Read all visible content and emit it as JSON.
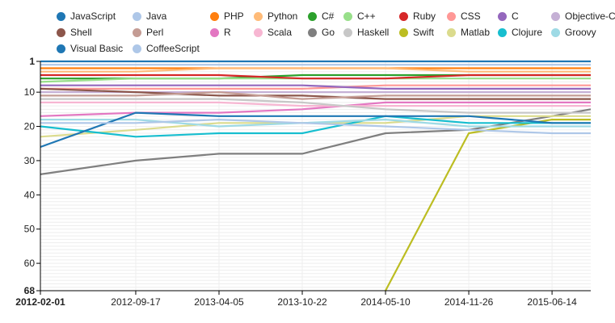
{
  "chart_data": {
    "type": "line",
    "title": "",
    "xlabel": "",
    "ylabel": "",
    "ylim": [
      1,
      68
    ],
    "y_reversed": true,
    "y_ticks": [
      "1",
      "10",
      "20",
      "30",
      "40",
      "50",
      "60",
      "68"
    ],
    "x": [
      "2012-02-01",
      "2012-09-17",
      "2013-04-05",
      "2013-10-22",
      "2014-05-10",
      "2014-11-26",
      "2015-06-14"
    ],
    "x_ticks": [
      "2012-02-01",
      "2012-09-17",
      "2013-04-05",
      "2013-10-22",
      "2014-05-10",
      "2014-11-26",
      "2015-06-14"
    ],
    "x_end": "2015-09-15",
    "grid": true,
    "legend_position": "top",
    "series": [
      {
        "name": "JavaScript",
        "color": "#1f77b4",
        "points": [
          [
            "2012-02-01",
            1
          ],
          [
            "2012-09-17",
            1
          ],
          [
            "2013-04-05",
            1
          ],
          [
            "2013-10-22",
            1
          ],
          [
            "2014-05-10",
            1
          ],
          [
            "2014-11-26",
            1
          ],
          [
            "2015-06-14",
            1
          ],
          [
            "2015-09-15",
            1
          ]
        ]
      },
      {
        "name": "Java",
        "color": "#aec7e8",
        "points": [
          [
            "2012-02-01",
            2
          ],
          [
            "2012-09-17",
            2
          ],
          [
            "2013-04-05",
            2
          ],
          [
            "2013-10-22",
            2
          ],
          [
            "2014-05-10",
            2
          ],
          [
            "2014-11-26",
            2
          ],
          [
            "2015-06-14",
            2
          ],
          [
            "2015-09-15",
            2
          ]
        ]
      },
      {
        "name": "PHP",
        "color": "#ff7f0e",
        "points": [
          [
            "2012-02-01",
            3
          ],
          [
            "2012-09-17",
            3
          ],
          [
            "2013-04-05",
            3
          ],
          [
            "2013-10-22",
            3
          ],
          [
            "2014-05-10",
            3
          ],
          [
            "2014-11-26",
            3
          ],
          [
            "2015-06-14",
            3
          ],
          [
            "2015-09-15",
            3
          ]
        ]
      },
      {
        "name": "Python",
        "color": "#ffbb78",
        "points": [
          [
            "2012-02-01",
            4
          ],
          [
            "2012-09-17",
            4
          ],
          [
            "2013-04-05",
            3
          ],
          [
            "2013-10-22",
            3
          ],
          [
            "2014-05-10",
            3
          ],
          [
            "2014-11-26",
            4
          ],
          [
            "2015-06-14",
            4
          ],
          [
            "2015-09-15",
            4
          ]
        ]
      },
      {
        "name": "C#",
        "color": "#2ca02c",
        "points": [
          [
            "2012-02-01",
            6
          ],
          [
            "2012-09-17",
            6
          ],
          [
            "2013-04-05",
            6
          ],
          [
            "2013-10-22",
            5
          ],
          [
            "2014-05-10",
            5
          ],
          [
            "2014-11-26",
            5
          ],
          [
            "2015-06-14",
            5
          ],
          [
            "2015-09-15",
            5
          ]
        ]
      },
      {
        "name": "C++",
        "color": "#98df8a",
        "points": [
          [
            "2012-02-01",
            7
          ],
          [
            "2012-09-17",
            6
          ],
          [
            "2013-04-05",
            6
          ],
          [
            "2013-10-22",
            6
          ],
          [
            "2014-05-10",
            6
          ],
          [
            "2014-11-26",
            6
          ],
          [
            "2015-06-14",
            6
          ],
          [
            "2015-09-15",
            6
          ]
        ]
      },
      {
        "name": "Ruby",
        "color": "#d62728",
        "points": [
          [
            "2012-02-01",
            5
          ],
          [
            "2012-09-17",
            5
          ],
          [
            "2013-04-05",
            5
          ],
          [
            "2013-10-22",
            6
          ],
          [
            "2014-05-10",
            6
          ],
          [
            "2014-11-26",
            5
          ],
          [
            "2015-06-14",
            5
          ],
          [
            "2015-09-15",
            5
          ]
        ]
      },
      {
        "name": "CSS",
        "color": "#ff9896",
        "points": [
          [
            "2012-02-01",
            9
          ],
          [
            "2012-09-17",
            9
          ],
          [
            "2013-04-05",
            9
          ],
          [
            "2013-10-22",
            9
          ],
          [
            "2014-05-10",
            8
          ],
          [
            "2014-11-26",
            8
          ],
          [
            "2015-06-14",
            8
          ],
          [
            "2015-09-15",
            8
          ]
        ]
      },
      {
        "name": "C",
        "color": "#9467bd",
        "points": [
          [
            "2012-02-01",
            8
          ],
          [
            "2012-09-17",
            8
          ],
          [
            "2013-04-05",
            8
          ],
          [
            "2013-10-22",
            8
          ],
          [
            "2014-05-10",
            9
          ],
          [
            "2014-11-26",
            9
          ],
          [
            "2015-06-14",
            9
          ],
          [
            "2015-09-15",
            9
          ]
        ]
      },
      {
        "name": "Objective-C",
        "color": "#c5b0d5",
        "points": [
          [
            "2012-02-01",
            10
          ],
          [
            "2012-09-17",
            10
          ],
          [
            "2013-04-05",
            10
          ],
          [
            "2013-10-22",
            10
          ],
          [
            "2014-05-10",
            10
          ],
          [
            "2014-11-26",
            10
          ],
          [
            "2015-06-14",
            10
          ],
          [
            "2015-09-15",
            10
          ]
        ]
      },
      {
        "name": "Shell",
        "color": "#8c564b",
        "points": [
          [
            "2012-02-01",
            9
          ],
          [
            "2012-09-17",
            10
          ],
          [
            "2013-04-05",
            11
          ],
          [
            "2013-10-22",
            11
          ],
          [
            "2014-05-10",
            12
          ],
          [
            "2014-11-26",
            12
          ],
          [
            "2015-06-14",
            12
          ],
          [
            "2015-09-15",
            12
          ]
        ]
      },
      {
        "name": "Perl",
        "color": "#c49c94",
        "points": [
          [
            "2012-02-01",
            11
          ],
          [
            "2012-09-17",
            11
          ],
          [
            "2013-04-05",
            10
          ],
          [
            "2013-10-22",
            12
          ],
          [
            "2014-05-10",
            11
          ],
          [
            "2014-11-26",
            11
          ],
          [
            "2015-06-14",
            11
          ],
          [
            "2015-09-15",
            11
          ]
        ]
      },
      {
        "name": "R",
        "color": "#e377c2",
        "points": [
          [
            "2012-02-01",
            17
          ],
          [
            "2012-09-17",
            16
          ],
          [
            "2013-04-05",
            16
          ],
          [
            "2013-10-22",
            15
          ],
          [
            "2014-05-10",
            13
          ],
          [
            "2014-11-26",
            13
          ],
          [
            "2015-06-14",
            13
          ],
          [
            "2015-09-15",
            13
          ]
        ]
      },
      {
        "name": "Scala",
        "color": "#f7b6d2",
        "points": [
          [
            "2012-02-01",
            13
          ],
          [
            "2012-09-17",
            13
          ],
          [
            "2013-04-05",
            13
          ],
          [
            "2013-10-22",
            14
          ],
          [
            "2014-05-10",
            14
          ],
          [
            "2014-11-26",
            14
          ],
          [
            "2015-06-14",
            14
          ],
          [
            "2015-09-15",
            14
          ]
        ]
      },
      {
        "name": "Go",
        "color": "#7f7f7f",
        "points": [
          [
            "2012-02-01",
            34
          ],
          [
            "2012-09-17",
            30
          ],
          [
            "2013-04-05",
            28
          ],
          [
            "2013-10-22",
            28
          ],
          [
            "2014-05-10",
            22
          ],
          [
            "2014-11-26",
            21
          ],
          [
            "2015-06-14",
            17
          ],
          [
            "2015-09-15",
            15
          ]
        ]
      },
      {
        "name": "Haskell",
        "color": "#c7c7c7",
        "points": [
          [
            "2012-02-01",
            12
          ],
          [
            "2012-09-17",
            12
          ],
          [
            "2013-04-05",
            12
          ],
          [
            "2013-10-22",
            13
          ],
          [
            "2014-05-10",
            15
          ],
          [
            "2014-11-26",
            16
          ],
          [
            "2015-06-14",
            16
          ],
          [
            "2015-09-15",
            16
          ]
        ]
      },
      {
        "name": "Swift",
        "color": "#bcbd22",
        "points": [
          [
            "2014-05-10",
            68
          ],
          [
            "2014-11-26",
            22
          ],
          [
            "2015-06-14",
            18
          ],
          [
            "2015-09-15",
            18
          ]
        ]
      },
      {
        "name": "Matlab",
        "color": "#dbdb8d",
        "points": [
          [
            "2012-02-01",
            23
          ],
          [
            "2012-09-17",
            21
          ],
          [
            "2013-04-05",
            19
          ],
          [
            "2013-10-22",
            19
          ],
          [
            "2014-05-10",
            19
          ],
          [
            "2014-11-26",
            17
          ],
          [
            "2015-06-14",
            17
          ],
          [
            "2015-09-15",
            17
          ]
        ]
      },
      {
        "name": "Clojure",
        "color": "#17becf",
        "points": [
          [
            "2012-02-01",
            20
          ],
          [
            "2012-09-17",
            23
          ],
          [
            "2013-04-05",
            22
          ],
          [
            "2013-10-22",
            22
          ],
          [
            "2014-05-10",
            17
          ],
          [
            "2014-11-26",
            19
          ],
          [
            "2015-06-14",
            19
          ],
          [
            "2015-09-15",
            19
          ]
        ]
      },
      {
        "name": "Groovy",
        "color": "#9edae5",
        "points": [
          [
            "2012-02-01",
            18
          ],
          [
            "2012-09-17",
            18
          ],
          [
            "2013-04-05",
            20
          ],
          [
            "2013-10-22",
            19
          ],
          [
            "2014-05-10",
            18
          ],
          [
            "2014-11-26",
            20
          ],
          [
            "2015-06-14",
            20
          ],
          [
            "2015-09-15",
            20
          ]
        ]
      },
      {
        "name": "Visual Basic",
        "color": "#1f77b4",
        "points": [
          [
            "2012-02-01",
            26
          ],
          [
            "2012-09-17",
            16
          ],
          [
            "2013-04-05",
            17
          ],
          [
            "2013-10-22",
            17
          ],
          [
            "2014-05-10",
            17
          ],
          [
            "2014-11-26",
            17
          ],
          [
            "2015-06-14",
            19
          ],
          [
            "2015-09-15",
            19
          ]
        ]
      },
      {
        "name": "CoffeeScript",
        "color": "#aec7e8",
        "points": [
          [
            "2012-02-01",
            19
          ],
          [
            "2012-09-17",
            19
          ],
          [
            "2013-04-05",
            18
          ],
          [
            "2013-10-22",
            19
          ],
          [
            "2014-05-10",
            20
          ],
          [
            "2014-11-26",
            21
          ],
          [
            "2015-06-14",
            22
          ],
          [
            "2015-09-15",
            22
          ]
        ]
      }
    ]
  }
}
